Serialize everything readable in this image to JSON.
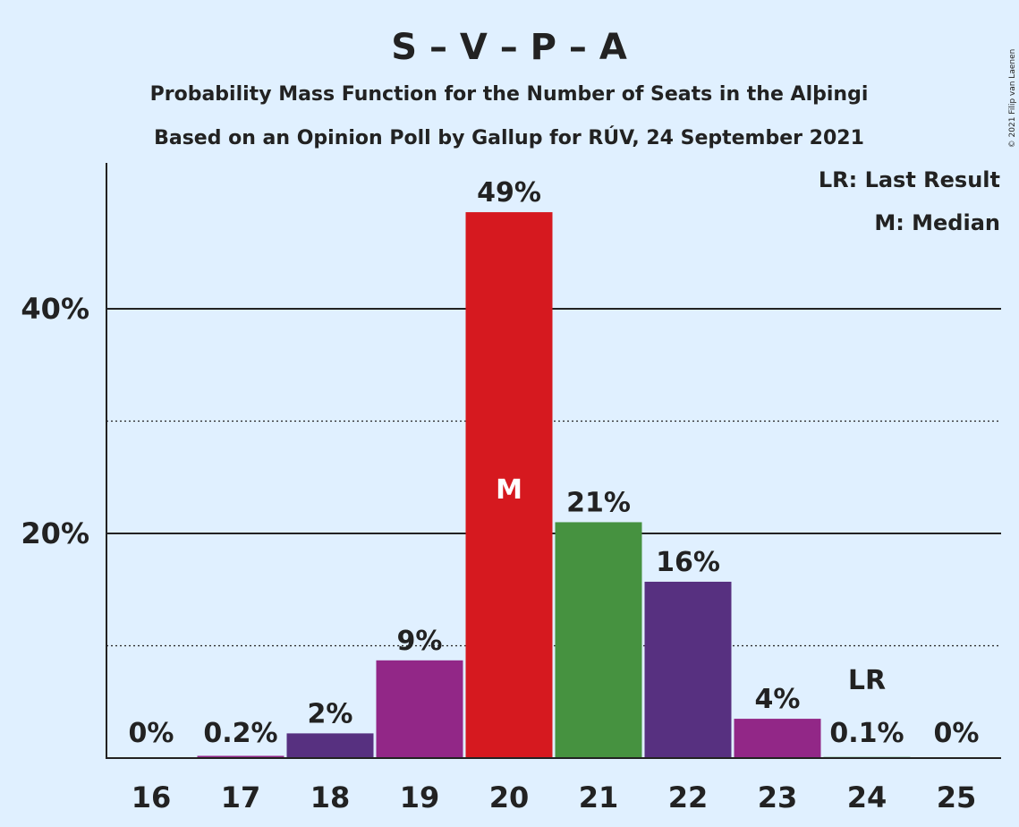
{
  "title": "S – V – P – A",
  "subtitle1": "Probability Mass Function for the Number of Seats in the Alþingi",
  "subtitle2": "Based on an Opinion Poll by Gallup for RÚV, 24 September 2021",
  "copyright": "© 2021 Filip van Laenen",
  "legend": {
    "lr": "LR: Last Result",
    "median": "M: Median"
  },
  "markers": {
    "median_label": "M",
    "median_seat": 20,
    "lr_label": "LR",
    "lr_seat": 24
  },
  "colors": {
    "background": "#e0f0ff",
    "S": "#d6191f",
    "V": "#469240",
    "P": "#573080",
    "A": "#922787"
  },
  "chart_data": {
    "type": "bar",
    "categories": [
      "16",
      "17",
      "18",
      "19",
      "20",
      "21",
      "22",
      "23",
      "24",
      "25"
    ],
    "values": [
      0,
      0.2,
      2.2,
      8.7,
      48.6,
      21.0,
      15.7,
      3.5,
      0.1,
      0
    ],
    "labels": [
      "0%",
      "0.2%",
      "2%",
      "9%",
      "49%",
      "21%",
      "16%",
      "4%",
      "0.1%",
      "0%"
    ],
    "bar_colors": [
      "#573080",
      "#922787",
      "#573080",
      "#922787",
      "#d6191f",
      "#469240",
      "#573080",
      "#922787",
      "#469240",
      "#573080"
    ],
    "ylim": [
      0,
      53
    ],
    "yticks": [
      {
        "value": 20,
        "label": "20%"
      },
      {
        "value": 40,
        "label": "40%"
      }
    ],
    "minor_gridlines": [
      10,
      30
    ],
    "xlabel": "",
    "ylabel": "",
    "legend_position": "top-right"
  }
}
